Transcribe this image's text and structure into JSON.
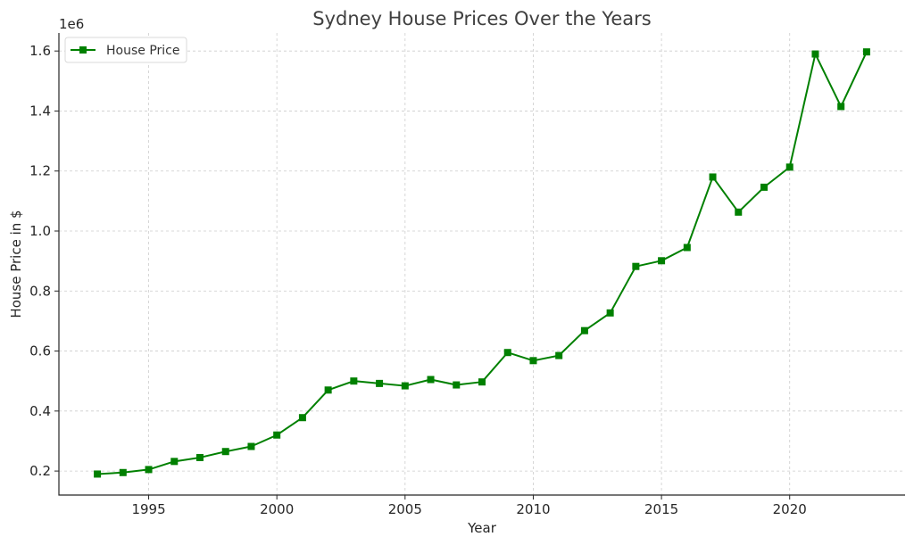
{
  "chart_data": {
    "type": "line",
    "title": "Sydney House Prices Over the Years",
    "xlabel": "Year",
    "ylabel": "House Price in $",
    "offset_label": "1e6",
    "xlim": [
      1991.5,
      2024.5
    ],
    "ylim": [
      0.12,
      1.66
    ],
    "x_ticks": [
      1995,
      2000,
      2005,
      2010,
      2015,
      2020
    ],
    "x_tick_labels": [
      "1995",
      "2000",
      "2005",
      "2010",
      "2015",
      "2020"
    ],
    "y_ticks": [
      0.2,
      0.4,
      0.6,
      0.8,
      1.0,
      1.2,
      1.4,
      1.6
    ],
    "y_tick_labels": [
      "0.2",
      "0.4",
      "0.6",
      "0.8",
      "1.0",
      "1.2",
      "1.4",
      "1.6"
    ],
    "grid": true,
    "legend_position": "top-left",
    "series": [
      {
        "name": "House Price",
        "color": "#008000",
        "marker": "square",
        "x": [
          1993,
          1994,
          1995,
          1996,
          1997,
          1998,
          1999,
          2000,
          2001,
          2002,
          2003,
          2004,
          2005,
          2006,
          2007,
          2008,
          2009,
          2010,
          2011,
          2012,
          2013,
          2014,
          2015,
          2016,
          2017,
          2018,
          2019,
          2020,
          2021,
          2022,
          2023
        ],
        "y": [
          0.19,
          0.195,
          0.205,
          0.232,
          0.245,
          0.265,
          0.282,
          0.32,
          0.378,
          0.47,
          0.5,
          0.492,
          0.484,
          0.505,
          0.487,
          0.497,
          0.595,
          0.568,
          0.585,
          0.668,
          0.727,
          0.882,
          0.901,
          0.945,
          1.18,
          1.063,
          1.146,
          1.213,
          1.59,
          1.415,
          1.597
        ]
      }
    ]
  }
}
